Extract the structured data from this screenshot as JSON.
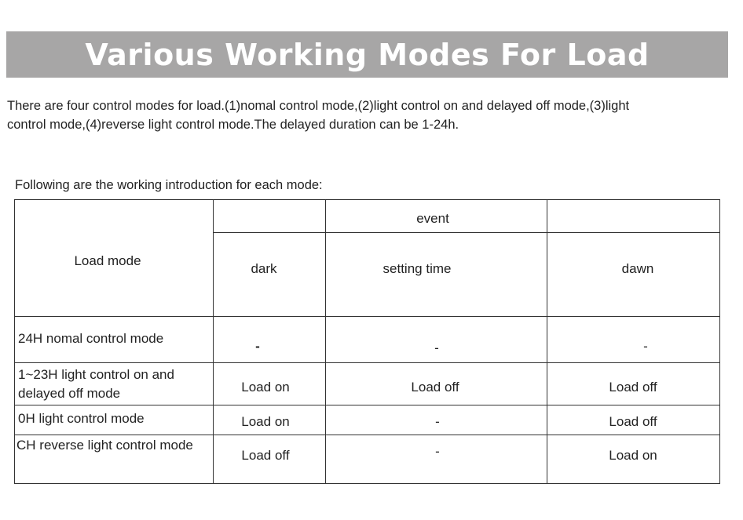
{
  "title": "Various Working Modes For Load",
  "intro": "There are four control modes for load.(1)nomal control mode,(2)light control on and delayed off mode,(3)light control mode,(4)reverse light control mode.The delayed duration can be 1-24h.",
  "following": "Following are the working introduction for each mode:",
  "table": {
    "header_mode": "Load mode",
    "header_event": "event",
    "columns": [
      "dark",
      "setting time",
      "dawn"
    ],
    "rows": [
      {
        "mode": "24H nomal control mode",
        "cells": [
          "-",
          "-",
          "-"
        ]
      },
      {
        "mode": "1~23H light control on and delayed off mode",
        "cells": [
          "Load on",
          "Load off",
          "Load off"
        ]
      },
      {
        "mode": "0H light control mode",
        "cells": [
          "Load on",
          "-",
          "Load off"
        ]
      },
      {
        "mode": "CH reverse light control mode",
        "cells": [
          "Load off",
          "-",
          "Load on"
        ]
      }
    ]
  }
}
